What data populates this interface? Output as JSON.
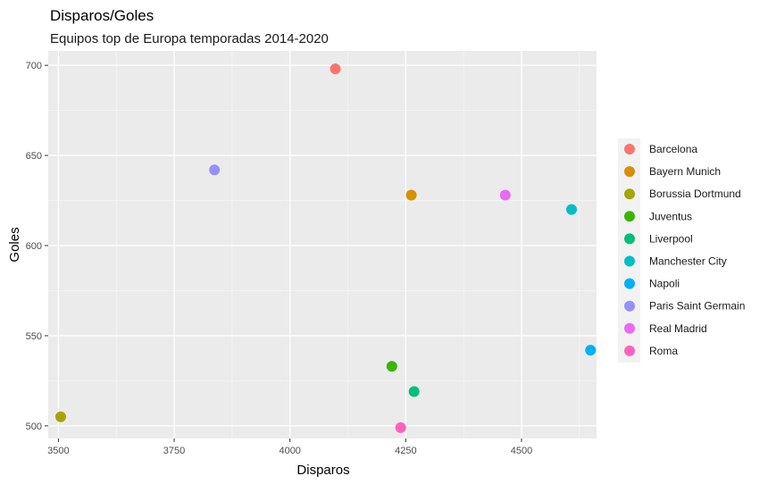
{
  "chart_data": {
    "type": "scatter",
    "title": "Disparos/Goles",
    "subtitle": "Equipos top de Europa temporadas 2014-2020",
    "xlabel": "Disparos",
    "ylabel": "Goles",
    "xlim": [
      3478,
      4662
    ],
    "ylim": [
      493,
      708
    ],
    "xticks": [
      3500,
      3750,
      4000,
      4250,
      4500
    ],
    "xtick_labels": [
      "3500",
      "3750",
      "4000",
      "4250",
      "4500"
    ],
    "yticks": [
      500,
      550,
      600,
      650,
      700
    ],
    "ytick_labels": [
      "500",
      "550",
      "600",
      "650",
      "700"
    ],
    "grid": true,
    "legend_position": "right",
    "background": "#EBEBEB",
    "series": [
      {
        "name": "Barcelona",
        "color": "#F8766D",
        "x": 4098,
        "y": 698
      },
      {
        "name": "Bayern Munich",
        "color": "#D89000",
        "x": 4262,
        "y": 628
      },
      {
        "name": "Borussia Dortmund",
        "color": "#A3A500",
        "x": 3505,
        "y": 505
      },
      {
        "name": "Juventus",
        "color": "#39B600",
        "x": 4220,
        "y": 533
      },
      {
        "name": "Liverpool",
        "color": "#00BF7D",
        "x": 4268,
        "y": 519
      },
      {
        "name": "Manchester City",
        "color": "#00BFC4",
        "x": 4608,
        "y": 620
      },
      {
        "name": "Napoli",
        "color": "#00B0F6",
        "x": 4649,
        "y": 542
      },
      {
        "name": "Paris Saint Germain",
        "color": "#9590FF",
        "x": 3837,
        "y": 642
      },
      {
        "name": "Real Madrid",
        "color": "#E76BF3",
        "x": 4465,
        "y": 628
      },
      {
        "name": "Roma",
        "color": "#FF62BC",
        "x": 4239,
        "y": 499
      }
    ]
  }
}
